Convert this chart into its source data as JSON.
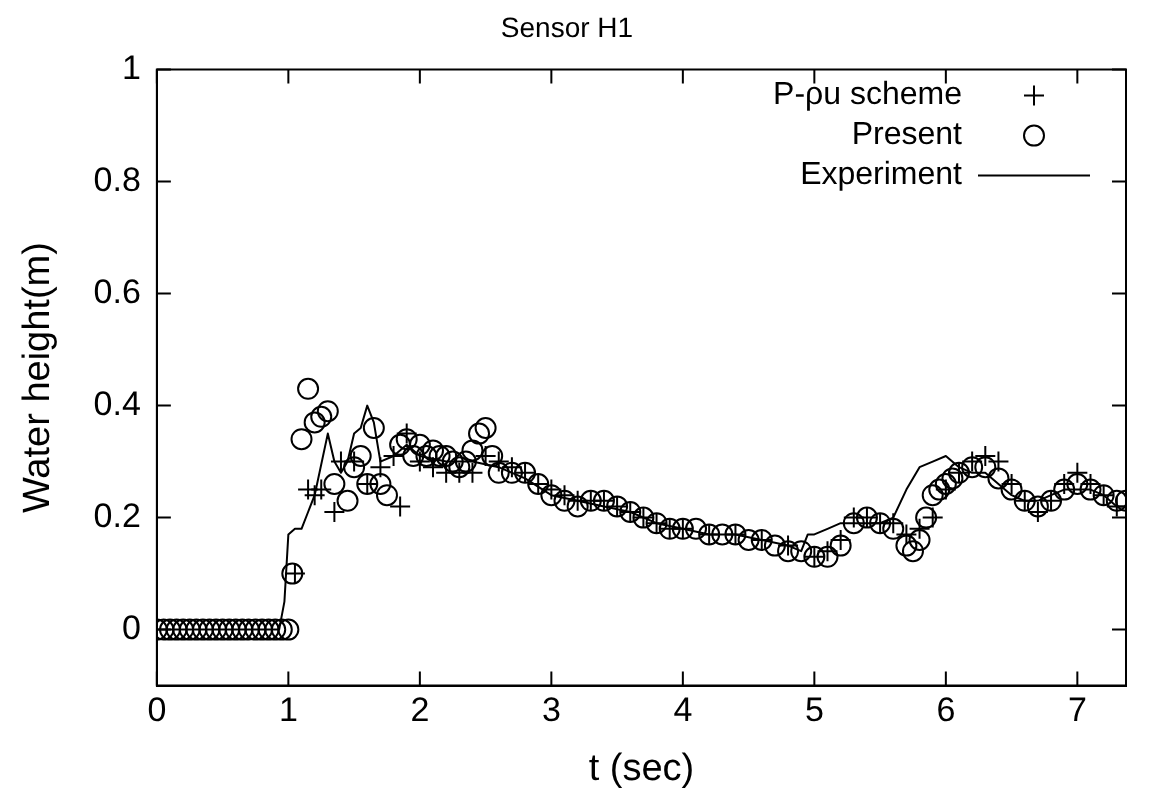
{
  "chart_data": {
    "type": "scatter",
    "title": "Sensor H1",
    "xlabel": "t (sec)",
    "ylabel": "Water height(m)",
    "xlim": [
      0,
      7.37
    ],
    "xticks": [
      0,
      1,
      2,
      3,
      4,
      5,
      6,
      7
    ],
    "ylim": [
      -0.1,
      1
    ],
    "yticks": [
      0,
      0.2,
      0.4,
      0.6,
      0.8,
      1
    ],
    "grid": false,
    "legend": "top right",
    "series": [
      {
        "name": "P-ρu scheme",
        "type": "scatter",
        "marker": "cross",
        "color": "#000000",
        "x": [
          1.05,
          1.15,
          1.2,
          1.25,
          1.35,
          1.4,
          1.5,
          1.6,
          1.7,
          1.8,
          1.85,
          1.9,
          2.0,
          2.1,
          2.2,
          2.3,
          2.4,
          2.5,
          2.6,
          2.7,
          2.8,
          2.9,
          3.0,
          3.1,
          3.2,
          3.3,
          3.4,
          3.5,
          3.6,
          3.7,
          3.8,
          3.9,
          4.0,
          4.2,
          4.4,
          4.6,
          4.8,
          5.0,
          5.1,
          5.2,
          5.3,
          5.4,
          5.5,
          5.6,
          5.7,
          5.8,
          5.9,
          6.0,
          6.1,
          6.2,
          6.3,
          6.4,
          6.5,
          6.6,
          6.7,
          6.8,
          6.9,
          7.0,
          7.1,
          7.2,
          7.3
        ],
        "values": [
          0.1,
          0.25,
          0.24,
          0.25,
          0.21,
          0.3,
          0.3,
          0.26,
          0.29,
          0.31,
          0.22,
          0.35,
          0.3,
          0.29,
          0.28,
          0.28,
          0.28,
          0.31,
          0.3,
          0.29,
          0.28,
          0.26,
          0.25,
          0.24,
          0.23,
          0.23,
          0.23,
          0.22,
          0.21,
          0.2,
          0.19,
          0.18,
          0.18,
          0.17,
          0.17,
          0.16,
          0.15,
          0.13,
          0.14,
          0.16,
          0.2,
          0.2,
          0.19,
          0.19,
          0.17,
          0.18,
          0.2,
          0.25,
          0.28,
          0.3,
          0.31,
          0.3,
          0.26,
          0.23,
          0.21,
          0.23,
          0.26,
          0.28,
          0.26,
          0.24,
          0.22
        ]
      },
      {
        "name": "Present",
        "type": "scatter",
        "marker": "circle",
        "color": "#000000",
        "x": [
          0,
          0.05,
          0.1,
          0.15,
          0.2,
          0.25,
          0.3,
          0.35,
          0.4,
          0.45,
          0.5,
          0.55,
          0.6,
          0.65,
          0.7,
          0.75,
          0.8,
          0.85,
          0.9,
          0.95,
          1.0,
          1.03,
          1.1,
          1.15,
          1.2,
          1.25,
          1.3,
          1.35,
          1.45,
          1.5,
          1.55,
          1.6,
          1.65,
          1.7,
          1.75,
          1.85,
          1.9,
          1.95,
          2.0,
          2.05,
          2.1,
          2.15,
          2.2,
          2.25,
          2.3,
          2.35,
          2.4,
          2.45,
          2.5,
          2.55,
          2.6,
          2.7,
          2.8,
          2.9,
          3.0,
          3.1,
          3.2,
          3.3,
          3.4,
          3.5,
          3.6,
          3.7,
          3.8,
          3.9,
          4.0,
          4.1,
          4.2,
          4.3,
          4.4,
          4.5,
          4.6,
          4.7,
          4.8,
          4.9,
          5.0,
          5.1,
          5.2,
          5.3,
          5.4,
          5.5,
          5.6,
          5.7,
          5.75,
          5.8,
          5.85,
          5.9,
          5.95,
          6.0,
          6.05,
          6.1,
          6.2,
          6.3,
          6.4,
          6.5,
          6.6,
          6.7,
          6.8,
          6.9,
          7.0,
          7.1,
          7.2,
          7.3,
          7.37
        ],
        "values": [
          0,
          0,
          0,
          0,
          0,
          0,
          0,
          0,
          0,
          0,
          0,
          0,
          0,
          0,
          0,
          0,
          0,
          0,
          0,
          0,
          0,
          0.1,
          0.34,
          0.43,
          0.37,
          0.38,
          0.39,
          0.26,
          0.23,
          0.29,
          0.31,
          0.26,
          0.36,
          0.26,
          0.24,
          0.33,
          0.34,
          0.31,
          0.33,
          0.31,
          0.32,
          0.31,
          0.31,
          0.3,
          0.29,
          0.3,
          0.32,
          0.35,
          0.36,
          0.31,
          0.28,
          0.28,
          0.28,
          0.26,
          0.24,
          0.23,
          0.22,
          0.23,
          0.23,
          0.22,
          0.21,
          0.2,
          0.19,
          0.18,
          0.18,
          0.18,
          0.17,
          0.17,
          0.17,
          0.16,
          0.16,
          0.15,
          0.14,
          0.14,
          0.13,
          0.13,
          0.15,
          0.19,
          0.2,
          0.19,
          0.18,
          0.15,
          0.14,
          0.16,
          0.2,
          0.24,
          0.25,
          0.26,
          0.27,
          0.28,
          0.29,
          0.29,
          0.27,
          0.25,
          0.23,
          0.22,
          0.23,
          0.25,
          0.26,
          0.25,
          0.24,
          0.23,
          0.23
        ]
      },
      {
        "name": "Experiment",
        "type": "line",
        "marker": "none",
        "line_style": "solid",
        "color": "#000000",
        "x": [
          0,
          0.93,
          0.97,
          1.0,
          1.05,
          1.1,
          1.15,
          1.2,
          1.3,
          1.35,
          1.4,
          1.45,
          1.5,
          1.55,
          1.6,
          1.65,
          1.7,
          1.8,
          1.9,
          2.0,
          2.2,
          2.4,
          2.6,
          2.8,
          3.0,
          3.2,
          3.4,
          3.6,
          3.8,
          4.0,
          4.2,
          4.4,
          4.6,
          4.8,
          4.9,
          4.95,
          5.0,
          5.1,
          5.2,
          5.3,
          5.4,
          5.5,
          5.6,
          5.7,
          5.8,
          5.9,
          6.0,
          6.1,
          6.2,
          6.3,
          6.4,
          6.5,
          6.6,
          6.7,
          6.8,
          6.9,
          7.0,
          7.1,
          7.2,
          7.3,
          7.37
        ],
        "values": [
          0,
          0,
          0.05,
          0.17,
          0.18,
          0.18,
          0.21,
          0.24,
          0.35,
          0.3,
          0.28,
          0.3,
          0.35,
          0.36,
          0.4,
          0.37,
          0.3,
          0.31,
          0.33,
          0.31,
          0.3,
          0.3,
          0.29,
          0.27,
          0.24,
          0.23,
          0.22,
          0.21,
          0.19,
          0.18,
          0.17,
          0.17,
          0.16,
          0.15,
          0.14,
          0.17,
          0.17,
          0.18,
          0.19,
          0.19,
          0.19,
          0.19,
          0.2,
          0.25,
          0.29,
          0.3,
          0.31,
          0.29,
          0.28,
          0.28,
          0.26,
          0.24,
          0.23,
          0.23,
          0.24,
          0.25,
          0.25,
          0.25,
          0.24,
          0.22,
          0.22
        ]
      }
    ]
  }
}
